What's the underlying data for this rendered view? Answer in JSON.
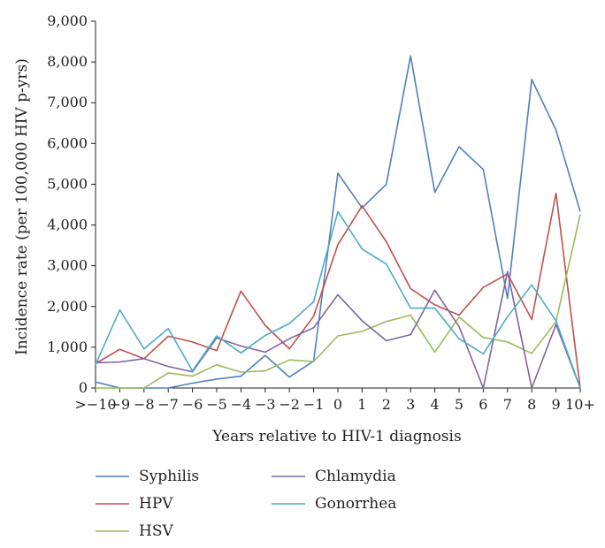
{
  "chart_data": {
    "type": "line",
    "title": "",
    "xlabel": "Years relative to HIV-1 diagnosis",
    "ylabel": "Incidence rate (per 100,000 HIV p-yrs)",
    "ylim": [
      0,
      9000
    ],
    "yticks": [
      0,
      1000,
      2000,
      3000,
      4000,
      5000,
      6000,
      7000,
      8000,
      9000
    ],
    "ytick_labels": [
      "0",
      "1,000",
      "2,000",
      "3,000",
      "4,000",
      "5,000",
      "6,000",
      "7,000",
      "8,000",
      "9,000"
    ],
    "categories": [
      ">−10",
      "−9",
      "−8",
      "−7",
      "−6",
      "−5",
      "−4",
      "−3",
      "−2",
      "−1",
      "0",
      "1",
      "2",
      "3",
      "4",
      "5",
      "6",
      "7",
      "8",
      "9",
      "10+"
    ],
    "grid": false,
    "legend_position": "bottom",
    "series": [
      {
        "name": "Syphilis",
        "color": "#4f81bd",
        "values": [
          150,
          0,
          0,
          0,
          120,
          220,
          290,
          800,
          270,
          660,
          5270,
          4420,
          5000,
          8150,
          4800,
          5920,
          5360,
          2200,
          7570,
          6330,
          4330
        ]
      },
      {
        "name": "HPV",
        "color": "#c0504d",
        "values": [
          600,
          950,
          720,
          1270,
          1130,
          920,
          2380,
          1540,
          960,
          1760,
          3520,
          4470,
          3590,
          2440,
          2040,
          1790,
          2470,
          2800,
          1680,
          4780,
          0
        ]
      },
      {
        "name": "HSV",
        "color": "#9bbb59",
        "values": [
          0,
          0,
          0,
          370,
          290,
          570,
          390,
          420,
          690,
          650,
          1280,
          1390,
          1630,
          1790,
          880,
          1740,
          1240,
          1130,
          850,
          1630,
          4260
        ]
      },
      {
        "name": "Chlamydia",
        "color": "#8064a2",
        "values": [
          620,
          640,
          720,
          530,
          400,
          1230,
          1030,
          880,
          1210,
          1480,
          2290,
          1650,
          1160,
          1310,
          2400,
          1510,
          0,
          2860,
          0,
          1560,
          0
        ]
      },
      {
        "name": "Gonorrhea",
        "color": "#4bacc6",
        "values": [
          570,
          1920,
          960,
          1460,
          420,
          1280,
          860,
          1290,
          1580,
          2120,
          4330,
          3410,
          3040,
          1960,
          1960,
          1210,
          840,
          1750,
          2530,
          1650,
          0
        ]
      }
    ]
  }
}
